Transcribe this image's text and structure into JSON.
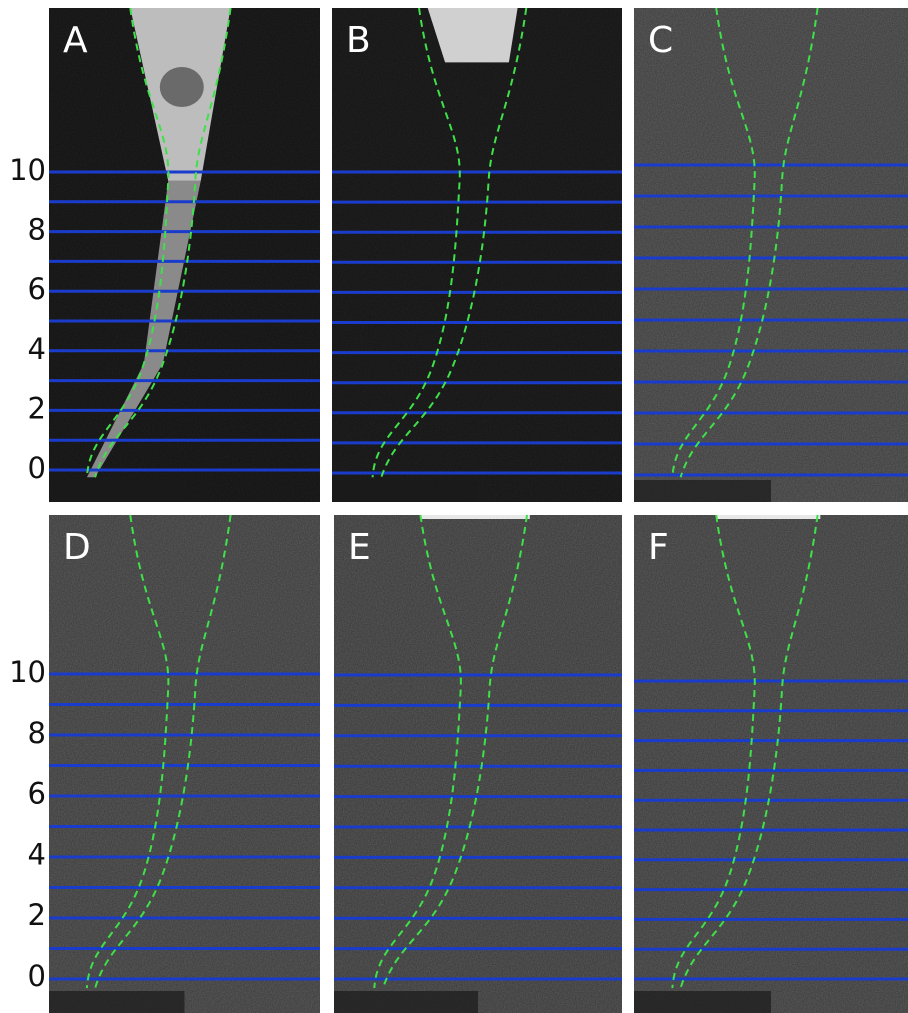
{
  "panels": [
    {
      "label": "A"
    },
    {
      "label": "B"
    },
    {
      "label": "C"
    },
    {
      "label": "D"
    },
    {
      "label": "E"
    },
    {
      "label": "F"
    }
  ],
  "axis_labels": {
    "top": [
      "10",
      "8",
      "6",
      "4",
      "2",
      "0"
    ],
    "bottom": [
      "10",
      "8",
      "6",
      "4",
      "2",
      "0"
    ]
  }
}
